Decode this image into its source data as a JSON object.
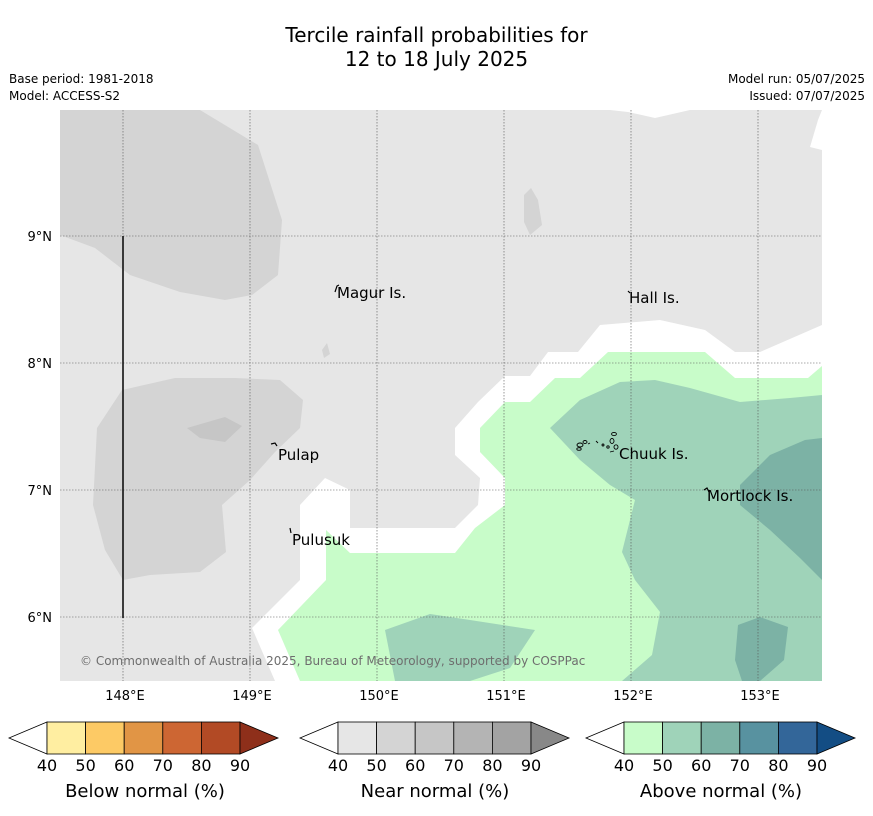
{
  "title": {
    "line1": "Tercile rainfall probabilities for",
    "line2": "12 to 18 July 2025"
  },
  "meta": {
    "base_period": "Base period: 1981-2018",
    "model": "Model: ACCESS-S2",
    "model_run": "Model run: 05/07/2025",
    "issued": "Issued: 07/07/2025"
  },
  "map": {
    "x_ticks": [
      "148°E",
      "149°E",
      "150°E",
      "151°E",
      "152°E",
      "153°E"
    ],
    "y_ticks": [
      "9°N",
      "8°N",
      "7°N",
      "6°N"
    ],
    "places": [
      "Magur Is.",
      "Hall Is.",
      "Pulap",
      "Chuuk Is.",
      "Mortlock Is.",
      "Pulusuk"
    ],
    "copyright": "© Commonwealth of Australia 2025, Bureau of Meteorology, supported by COSPPac",
    "colors": {
      "below": [
        "#ffeea1",
        "#fdca65",
        "#e19545",
        "#cd6633",
        "#b24a25",
        "#8e2f1a"
      ],
      "near": [
        "#e6e6e6",
        "#d4d4d4",
        "#c6c6c6",
        "#b4b4b4",
        "#a3a3a3",
        "#888888"
      ],
      "above": [
        "#c8fcc9",
        "#9fd3b9",
        "#7cb2a5",
        "#5892a0",
        "#336699",
        "#134d84"
      ],
      "no_signal": "#ffffff"
    }
  },
  "colorbars": {
    "below": {
      "label": "Below normal (%)",
      "ticks": [
        "40",
        "50",
        "60",
        "70",
        "80",
        "90"
      ]
    },
    "near": {
      "label": "Near normal (%)",
      "ticks": [
        "40",
        "50",
        "60",
        "70",
        "80",
        "90"
      ]
    },
    "above": {
      "label": "Above normal (%)",
      "ticks": [
        "40",
        "50",
        "60",
        "70",
        "80",
        "90"
      ]
    }
  }
}
